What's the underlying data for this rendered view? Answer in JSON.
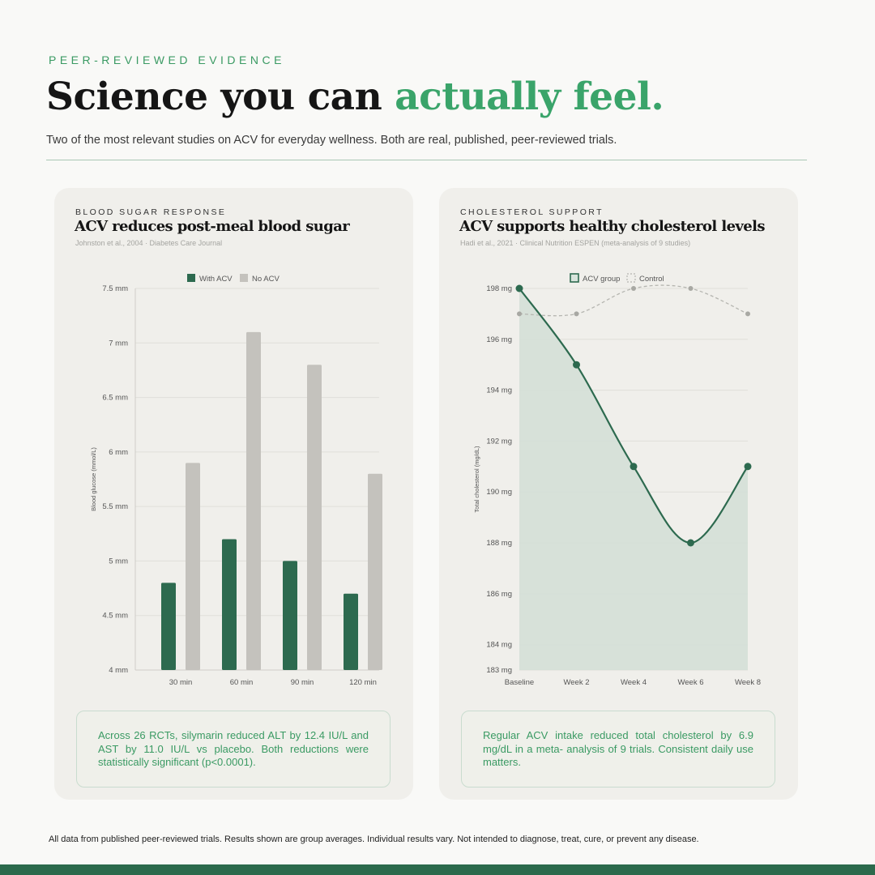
{
  "header": {
    "eyebrow": "PEER-REVIEWED EVIDENCE",
    "title_main": "Science you can ",
    "title_accent": "actually feel.",
    "subtitle": "Two of the most relevant studies on ACV for everyday wellness. Both are real, published, peer-reviewed trials."
  },
  "cards": [
    {
      "kicker": "BLOOD SUGAR RESPONSE",
      "title": "ACV reduces post-meal blood sugar",
      "source": "Johnston et al., 2004 · Diabetes Care Journal",
      "note": "Across 26 RCTs, silymarin reduced ALT by 12.4 IU/L and AST by 11.0 IU/L vs placebo. Both reductions were statistically significant (p<0.0001)."
    },
    {
      "kicker": "CHOLESTEROL SUPPORT",
      "title": "ACV supports healthy cholesterol levels",
      "source": "Hadi et al., 2021 · Clinical Nutrition ESPEN (meta-analysis of 9 studies)",
      "note": "Regular ACV intake reduced total cholesterol by 6.9 mg/dL in a meta- analysis of 9 trials. Consistent daily use matters."
    }
  ],
  "colors": {
    "accent": "#3aa46a",
    "dark_green": "#2d6a4f",
    "grey_bar": "#c4c2bd",
    "control_line": "#b5b5b0"
  },
  "chart_data": [
    {
      "type": "bar",
      "categories": [
        "30 min",
        "60 min",
        "90 min",
        "120 min"
      ],
      "series": [
        {
          "name": "With ACV",
          "values": [
            4.8,
            5.2,
            5.0,
            4.7
          ]
        },
        {
          "name": "No ACV",
          "values": [
            5.9,
            7.1,
            6.8,
            5.8
          ]
        }
      ],
      "ylabel": "Blood glucose (mmol/L)",
      "ylim": [
        4,
        7.5
      ],
      "yticks": [
        4,
        4.5,
        5,
        5.5,
        6,
        6.5,
        7,
        7.5
      ],
      "ytick_labels": [
        "4 mm",
        "4.5 mm",
        "5 mm",
        "5.5 mm",
        "6 mm",
        "6.5 mm",
        "7 mm",
        "7.5 mm"
      ],
      "legend": "top-center",
      "grid": true
    },
    {
      "type": "line",
      "categories": [
        "Baseline",
        "Week 2",
        "Week 4",
        "Week 6",
        "Week 8"
      ],
      "series": [
        {
          "name": "ACV group",
          "values": [
            198,
            195,
            191,
            188,
            191
          ]
        },
        {
          "name": "Control",
          "values": [
            197,
            197,
            198,
            198,
            197
          ]
        }
      ],
      "ylabel": "Total cholesterol (mg/dL)",
      "ylim": [
        183,
        198
      ],
      "yticks": [
        183,
        184,
        186,
        188,
        190,
        192,
        194,
        196,
        198
      ],
      "ytick_labels": [
        "183 mg",
        "184 mg",
        "186 mg",
        "188 mg",
        "190 mg",
        "192 mg",
        "194 mg",
        "196 mg",
        "198 mg"
      ],
      "legend": "top-center",
      "grid": true
    }
  ],
  "footer": {
    "disclaimer": "All data from published peer-reviewed trials. Results shown are group averages. Individual results vary. Not intended to diagnose, treat, cure, or prevent any disease."
  }
}
